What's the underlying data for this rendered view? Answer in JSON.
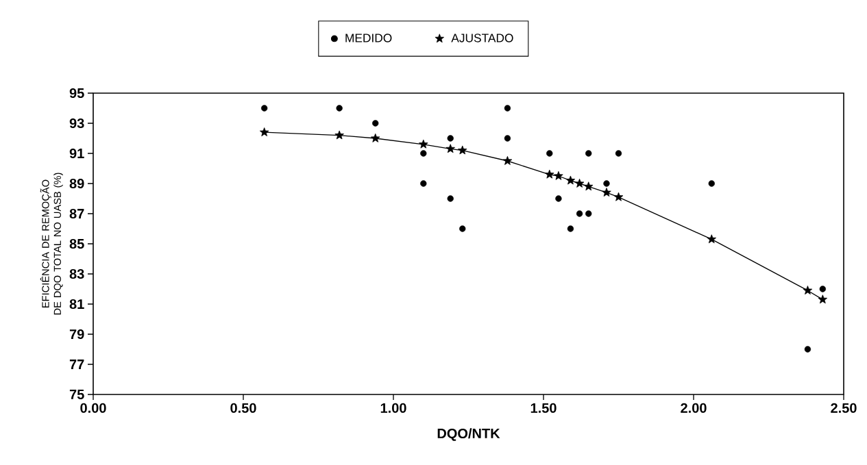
{
  "chart_data": {
    "type": "scatter",
    "xlabel": "DQO/NTK",
    "ylabel": "EFICIÊNCIA DE REMOÇÃO DE DQO TOTAL NO UASB (%)",
    "xlim": [
      0,
      2.5
    ],
    "ylim": [
      75,
      95
    ],
    "xticks": [
      {
        "value": 0,
        "label": "0.00"
      },
      {
        "value": 0.5,
        "label": "0.50"
      },
      {
        "value": 1,
        "label": "1.00"
      },
      {
        "value": 1.5,
        "label": "1.50"
      },
      {
        "value": 2,
        "label": "2.00"
      },
      {
        "value": 2.5,
        "label": "2.50"
      }
    ],
    "yticks": [
      75,
      77,
      79,
      81,
      83,
      85,
      87,
      89,
      91,
      93,
      95
    ],
    "grid": false,
    "legend": "top",
    "series": [
      {
        "name": "MEDIDO",
        "type": "scatter",
        "marker": "circle",
        "color": "#000000",
        "x": [
          0.57,
          0.82,
          0.94,
          1.1,
          1.1,
          1.19,
          1.19,
          1.23,
          1.38,
          1.38,
          1.52,
          1.55,
          1.59,
          1.62,
          1.65,
          1.65,
          1.71,
          1.75,
          2.06,
          2.38,
          2.43
        ],
        "values": [
          94,
          94,
          93,
          89,
          91,
          92,
          88,
          86,
          94,
          92,
          91,
          88,
          86,
          87,
          87,
          91,
          89,
          91,
          89,
          78,
          82
        ]
      },
      {
        "name": "AJUSTADO",
        "type": "line",
        "marker": "star",
        "line_style": "solid",
        "color": "#000000",
        "x": [
          0.57,
          0.82,
          0.94,
          1.1,
          1.19,
          1.23,
          1.38,
          1.52,
          1.55,
          1.59,
          1.62,
          1.65,
          1.71,
          1.75,
          2.06,
          2.38,
          2.43
        ],
        "values": [
          92.4,
          92.2,
          92.0,
          91.6,
          91.3,
          91.2,
          90.5,
          89.6,
          89.5,
          89.2,
          89.0,
          88.8,
          88.4,
          88.1,
          85.3,
          81.9,
          81.3
        ]
      }
    ]
  }
}
